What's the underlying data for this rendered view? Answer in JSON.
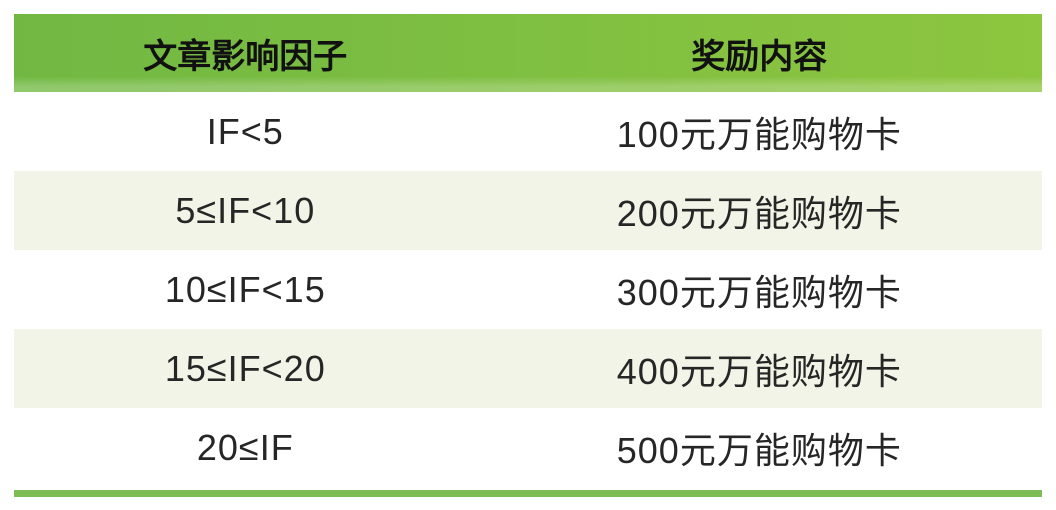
{
  "table": {
    "header": [
      {
        "label": "文章影响因子"
      },
      {
        "label": "奖励内容"
      }
    ],
    "rows": [
      {
        "if_range": "IF<5",
        "reward": "100元万能购物卡"
      },
      {
        "if_range": "5≤IF<10",
        "reward": "200元万能购物卡"
      },
      {
        "if_range": "10≤IF<15",
        "reward": "300元万能购物卡"
      },
      {
        "if_range": "15≤IF<20",
        "reward": "400元万能购物卡"
      },
      {
        "if_range": "20≤IF",
        "reward": "500元万能购物卡"
      }
    ]
  },
  "colors": {
    "header_green_left": "#71b843",
    "header_green_right": "#8dc63f",
    "alt_row_bg": "#f1f4e6",
    "bottom_rule_green": "#7cbd55",
    "body_text": "#262626",
    "header_text": "#111111"
  },
  "chart_data": {
    "type": "table",
    "title": "",
    "columns": [
      "文章影响因子",
      "奖励内容"
    ],
    "rows": [
      [
        "IF<5",
        "100元万能购物卡"
      ],
      [
        "5≤IF<10",
        "200元万能购物卡"
      ],
      [
        "10≤IF<15",
        "300元万能购物卡"
      ],
      [
        "15≤IF<20",
        "400元万能购物卡"
      ],
      [
        "20≤IF",
        "500元万能购物卡"
      ]
    ],
    "reward_values_cny": [
      100,
      200,
      300,
      400,
      500
    ],
    "layout": {
      "header_bg": "green-gradient",
      "alternating_rows": true,
      "bottom_rule": true
    }
  }
}
